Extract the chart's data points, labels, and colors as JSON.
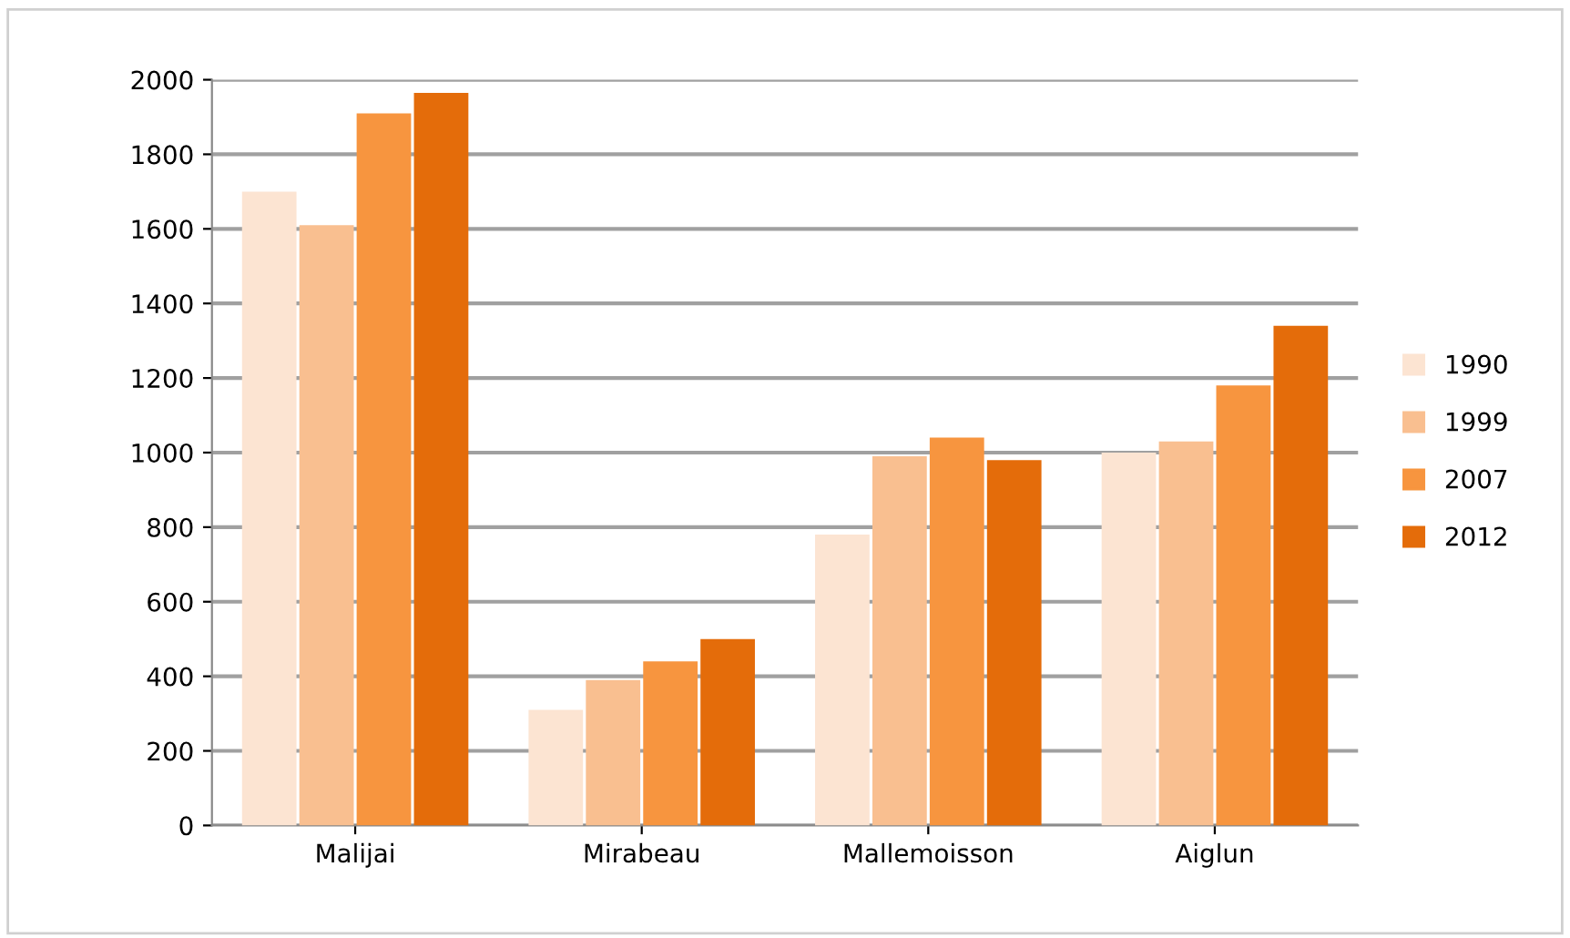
{
  "chart_data": {
    "type": "bar",
    "categories": [
      "Malijai",
      "Mirabeau",
      "Mallemoisson",
      "Aiglun"
    ],
    "series": [
      {
        "name": "1990",
        "color": "#fce4d2",
        "values": [
          1700,
          310,
          780,
          1000
        ]
      },
      {
        "name": "1999",
        "color": "#f9bf90",
        "values": [
          1610,
          390,
          990,
          1030
        ]
      },
      {
        "name": "2007",
        "color": "#f7953f",
        "values": [
          1910,
          440,
          1040,
          1180
        ]
      },
      {
        "name": "2012",
        "color": "#e46c0a",
        "values": [
          1965,
          500,
          980,
          1340
        ]
      }
    ],
    "ylim": [
      0,
      2000
    ],
    "yticks": [
      0,
      200,
      400,
      600,
      800,
      1000,
      1200,
      1400,
      1600,
      1800,
      2000
    ],
    "grid": "y",
    "legend": "right"
  }
}
